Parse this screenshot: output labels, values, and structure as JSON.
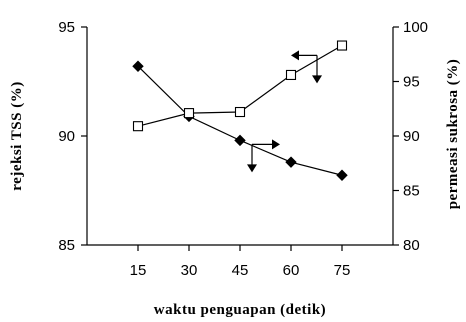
{
  "chart_data": {
    "type": "line",
    "x": [
      15,
      30,
      45,
      60,
      75
    ],
    "xlabel": "waktu penguapan (detik)",
    "xlim": [
      0,
      90
    ],
    "x_ticks": [
      "15",
      "30",
      "45",
      "60",
      "75"
    ],
    "y_left": {
      "label": "rejeksi TSS (%)",
      "lim": [
        85,
        95
      ],
      "ticks": [
        "85",
        "90",
        "95"
      ]
    },
    "y_right": {
      "label": "permeasi sukrosa (%)",
      "lim": [
        80,
        100
      ],
      "ticks": [
        "80",
        "85",
        "90",
        "95",
        "100"
      ]
    },
    "series": [
      {
        "axis": "left",
        "marker": "diamond-filled",
        "values": [
          93.2,
          90.9,
          89.8,
          88.8,
          88.2
        ]
      },
      {
        "axis": "right",
        "marker": "square-open",
        "values": [
          90.9,
          92.1,
          92.2,
          95.6,
          98.3
        ]
      }
    ],
    "grid": false,
    "legend": "none"
  }
}
